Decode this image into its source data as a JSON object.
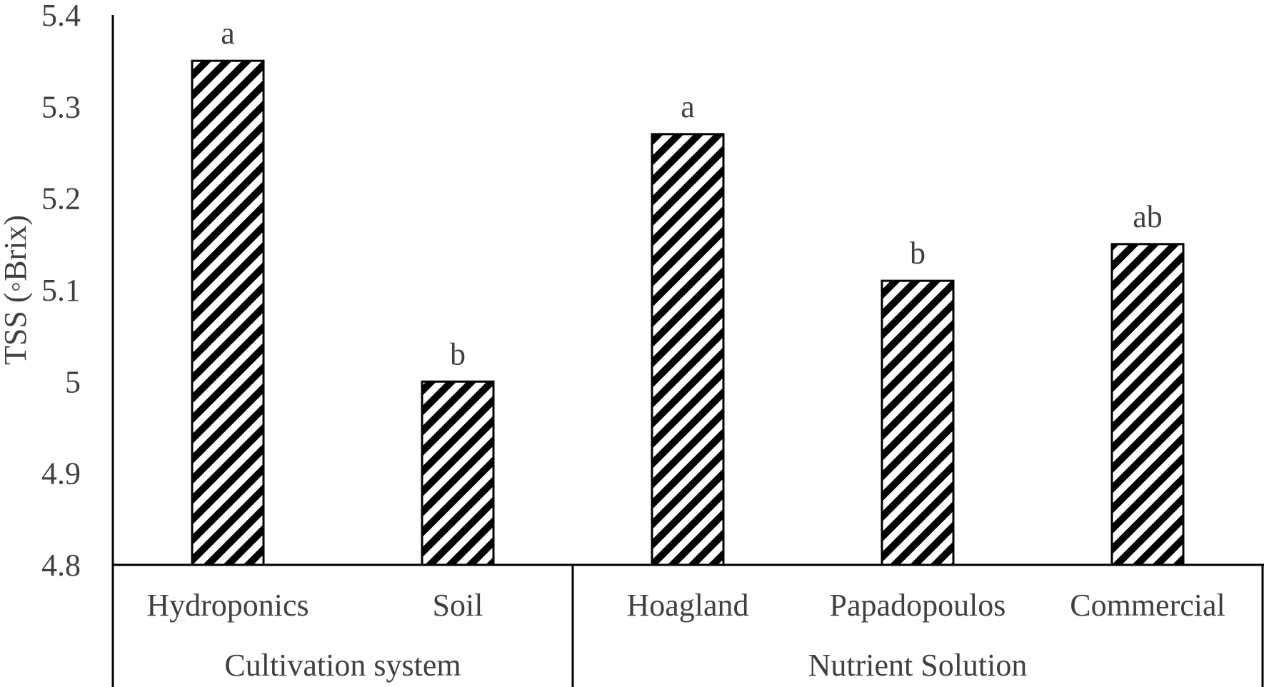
{
  "chart_data": {
    "type": "bar",
    "title": "",
    "ylabel": "TSS (◦Brix)",
    "ylim": [
      4.8,
      5.4
    ],
    "yticks": [
      "4.8",
      "4.9",
      "5",
      "5.1",
      "5.2",
      "5.3",
      "5.4"
    ],
    "categories": [
      "Hydroponics",
      "Soil",
      "Hoagland",
      "Papadopoulos",
      "Commercial"
    ],
    "values": [
      5.35,
      5.0,
      5.27,
      5.11,
      5.15
    ],
    "significance_letters": [
      "a",
      "b",
      "a",
      "b",
      "ab"
    ],
    "groups": [
      {
        "label": "Cultivation system",
        "categories": [
          "Hydroponics",
          "Soil"
        ]
      },
      {
        "label": "Nutrient Solution",
        "categories": [
          "Hoagland",
          "Papadopoulos",
          "Commercial"
        ]
      }
    ],
    "bar_pattern": "diagonal-hatch",
    "grid": false,
    "legend": "none"
  },
  "colors": {
    "axis": "#000000",
    "text": "#404040",
    "bar_fill": "#ffffff",
    "hatch": "#000000"
  }
}
